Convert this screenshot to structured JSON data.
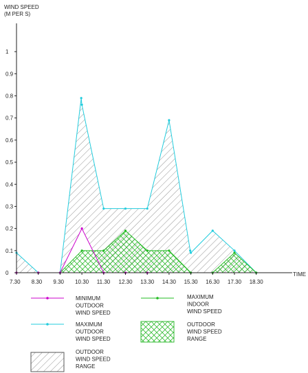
{
  "chart_data": {
    "type": "line",
    "ylabel_lines": [
      "WIND SPEED",
      "(M PER S)"
    ],
    "xlabel": "TIME",
    "ylim": [
      0,
      1.1
    ],
    "yticks": [
      0,
      0.1,
      0.2,
      0.3,
      0.4,
      0.5,
      0.6,
      0.7,
      0.8,
      0.9,
      1
    ],
    "ytick_labels": [
      "0",
      "0.1",
      "0.2",
      "0.3",
      "0.4",
      "0.5",
      "0.6",
      "0.7",
      "0.8",
      "0.9",
      "1"
    ],
    "categories": [
      "7.30",
      "8.30",
      "9.30",
      "10.30",
      "11.30",
      "12.30",
      "13.30",
      "14.30",
      "15.30",
      "16.30",
      "17.30",
      "18.30"
    ],
    "series": [
      {
        "name": "MINIMUM OUTDOOR WIND SPEED",
        "color": "#cc00cc",
        "points": [
          [
            0,
            0
          ],
          [
            1,
            0
          ],
          [
            2,
            0
          ],
          [
            3,
            0.2
          ],
          [
            4,
            0
          ],
          [
            5,
            0
          ],
          [
            6,
            0
          ]
        ]
      },
      {
        "name": "MAXIMUM INDOOR WIND SPEED",
        "color": "#22bb22",
        "points": [
          [
            1,
            0
          ],
          [
            2,
            0
          ],
          [
            3,
            0.1
          ],
          [
            4,
            0.1
          ],
          [
            5,
            0.19
          ],
          [
            6,
            0.1
          ],
          [
            7,
            0.1
          ],
          [
            8,
            0
          ],
          [
            9,
            0
          ],
          [
            10,
            0.09
          ],
          [
            11,
            0
          ]
        ]
      },
      {
        "name": "MAXIMUM OUTDOOR WIND SPEED",
        "color": "#22ccdd",
        "points": [
          [
            0,
            0.09
          ],
          [
            1,
            0
          ],
          [
            2,
            0
          ],
          [
            2.97,
            0.79
          ],
          [
            3,
            0.76
          ],
          [
            4,
            0.29
          ],
          [
            5,
            0.29
          ],
          [
            6,
            0.29
          ],
          [
            7,
            0.69
          ],
          [
            7.97,
            0.1
          ],
          [
            8,
            0.09
          ],
          [
            9,
            0.19
          ],
          [
            10,
            0.1
          ],
          [
            11,
            0
          ]
        ]
      }
    ],
    "areas": [
      {
        "name": "OUTDOOR WIND SPEED RANGE",
        "hatch": "grey-diagonal",
        "upper": "MAXIMUM OUTDOOR WIND SPEED",
        "lower": "MINIMUM OUTDOOR WIND SPEED"
      },
      {
        "name": "OUTDOOR WIND SPEED RANGE",
        "hatch": "green-cross",
        "upper": "MAXIMUM INDOOR WIND SPEED",
        "lower": "baseline"
      }
    ],
    "legend": [
      {
        "type": "line",
        "color": "#cc00cc",
        "lines": [
          "MINIMUM",
          "OUTDOOR",
          "WIND SPEED"
        ]
      },
      {
        "type": "line",
        "color": "#22bb22",
        "lines": [
          "MAXIMUM",
          "INDOOR",
          "WIND SPEED"
        ]
      },
      {
        "type": "line",
        "color": "#22ccdd",
        "lines": [
          "MAXIMUM",
          "OUTDOOR",
          "WIND SPEED"
        ]
      },
      {
        "type": "hatch-green",
        "lines": [
          "OUTDOOR",
          "WIND SPEED",
          "RANGE"
        ]
      },
      {
        "type": "hatch-grey",
        "lines": [
          "OUTDOOR",
          "WIND SPEED",
          "RANGE"
        ]
      }
    ],
    "grid": false
  }
}
